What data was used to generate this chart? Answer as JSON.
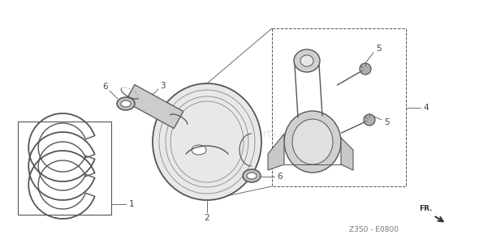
{
  "bg_color": "#ffffff",
  "line_color": "#555555",
  "dark_color": "#333333",
  "label_color": "#444444",
  "fig_width": 5.9,
  "fig_height": 2.95,
  "dpi": 100,
  "footer_text": "Z3S0 - E0800",
  "fr_text": "FR."
}
